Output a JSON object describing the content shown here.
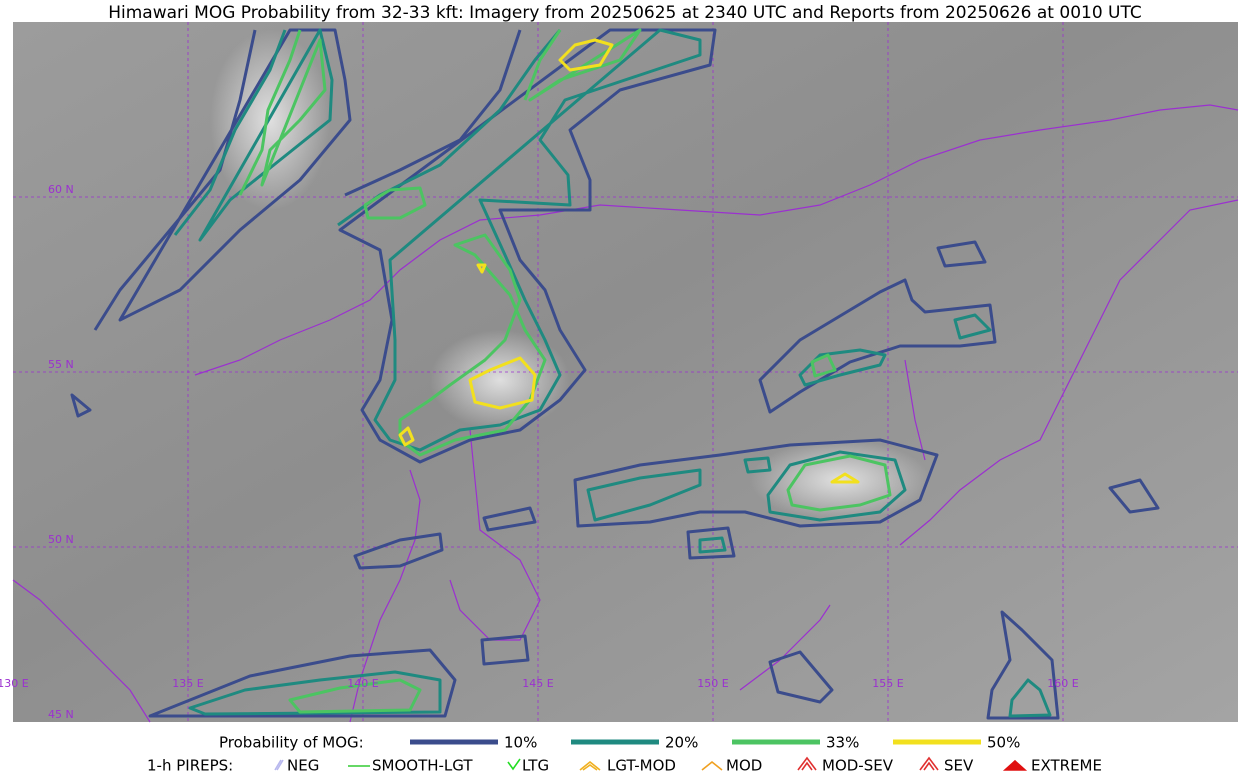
{
  "title": "Himawari MOG Probability from 32-33 kft: Imagery from 20250625 at 2340 UTC and Reports from 20250626 at 0010 UTC",
  "map": {
    "lat_labels": [
      "60 N",
      "55 N",
      "50 N",
      "45 N"
    ],
    "lon_labels": [
      "130 E",
      "135 E",
      "140 E",
      "145 E",
      "150 E",
      "155 E",
      "160 E"
    ]
  },
  "legend": {
    "probability": {
      "label": "Probability of MOG:",
      "levels": [
        {
          "label": "10%",
          "color": "#3b4c8c"
        },
        {
          "label": "20%",
          "color": "#1f8a80"
        },
        {
          "label": "33%",
          "color": "#4cc462"
        },
        {
          "label": "50%",
          "color": "#f2e01e"
        }
      ]
    },
    "pireps": {
      "label": "1-h PIREPS:",
      "items": [
        {
          "label": "NEG",
          "color": "#b8b8ee"
        },
        {
          "label": "SMOOTH-LGT",
          "color": "#33cc33"
        },
        {
          "label": "LTG",
          "color": "#22dd22"
        },
        {
          "label": "LGT-MOD",
          "color": "#f0b020"
        },
        {
          "label": "MOD",
          "color": "#f0a020"
        },
        {
          "label": "MOD-SEV",
          "color": "#e03030"
        },
        {
          "label": "SEV",
          "color": "#e03030"
        },
        {
          "label": "EXTREME",
          "color": "#e01010"
        }
      ]
    }
  }
}
